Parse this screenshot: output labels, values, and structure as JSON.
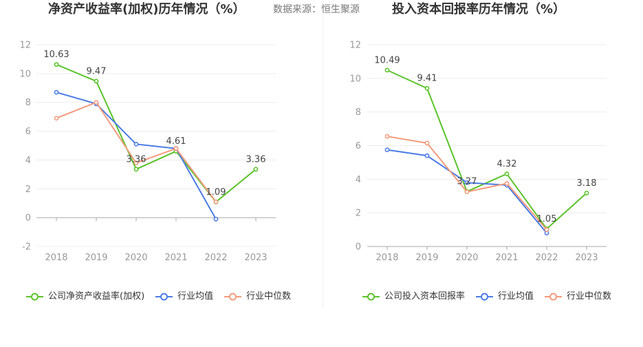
{
  "source": "数据来源：恒生聚源",
  "chart_data": [
    {
      "type": "line",
      "title": "净资产收益率(加权)历年情况（%）",
      "categories": [
        "2018",
        "2019",
        "2020",
        "2021",
        "2022",
        "2023"
      ],
      "ylim": [
        -2,
        12
      ],
      "yticks": [
        -2,
        0,
        2,
        4,
        6,
        8,
        10,
        12
      ],
      "grid": true,
      "legend": "bottom",
      "series": [
        {
          "name": "公司净资产收益率(加权)",
          "color": "#5bc32a",
          "data_labels": true,
          "values": [
            10.63,
            9.47,
            3.36,
            4.61,
            1.09,
            3.36
          ]
        },
        {
          "name": "行业均值",
          "color": "#4b7be5",
          "data_labels": false,
          "values": [
            8.7,
            7.9,
            5.1,
            4.8,
            -0.1,
            null
          ]
        },
        {
          "name": "行业中位数",
          "color": "#f49a7b",
          "data_labels": false,
          "values": [
            6.9,
            8.0,
            3.8,
            4.8,
            1.1,
            null
          ]
        }
      ]
    },
    {
      "type": "line",
      "title": "投入资本回报率历年情况（%）",
      "categories": [
        "2018",
        "2019",
        "2020",
        "2021",
        "2022",
        "2023"
      ],
      "ylim": [
        0,
        12
      ],
      "yticks": [
        0,
        2,
        4,
        6,
        8,
        10,
        12
      ],
      "grid": true,
      "legend": "bottom",
      "series": [
        {
          "name": "公司投入资本回报率",
          "color": "#5bc32a",
          "data_labels": true,
          "values": [
            10.49,
            9.41,
            3.27,
            4.32,
            1.05,
            3.18
          ]
        },
        {
          "name": "行业均值",
          "color": "#4b7be5",
          "data_labels": false,
          "values": [
            5.75,
            5.4,
            3.8,
            3.65,
            0.8,
            null
          ]
        },
        {
          "name": "行业中位数",
          "color": "#f49a7b",
          "data_labels": false,
          "values": [
            6.55,
            6.15,
            3.25,
            3.75,
            1.0,
            null
          ]
        }
      ]
    }
  ]
}
